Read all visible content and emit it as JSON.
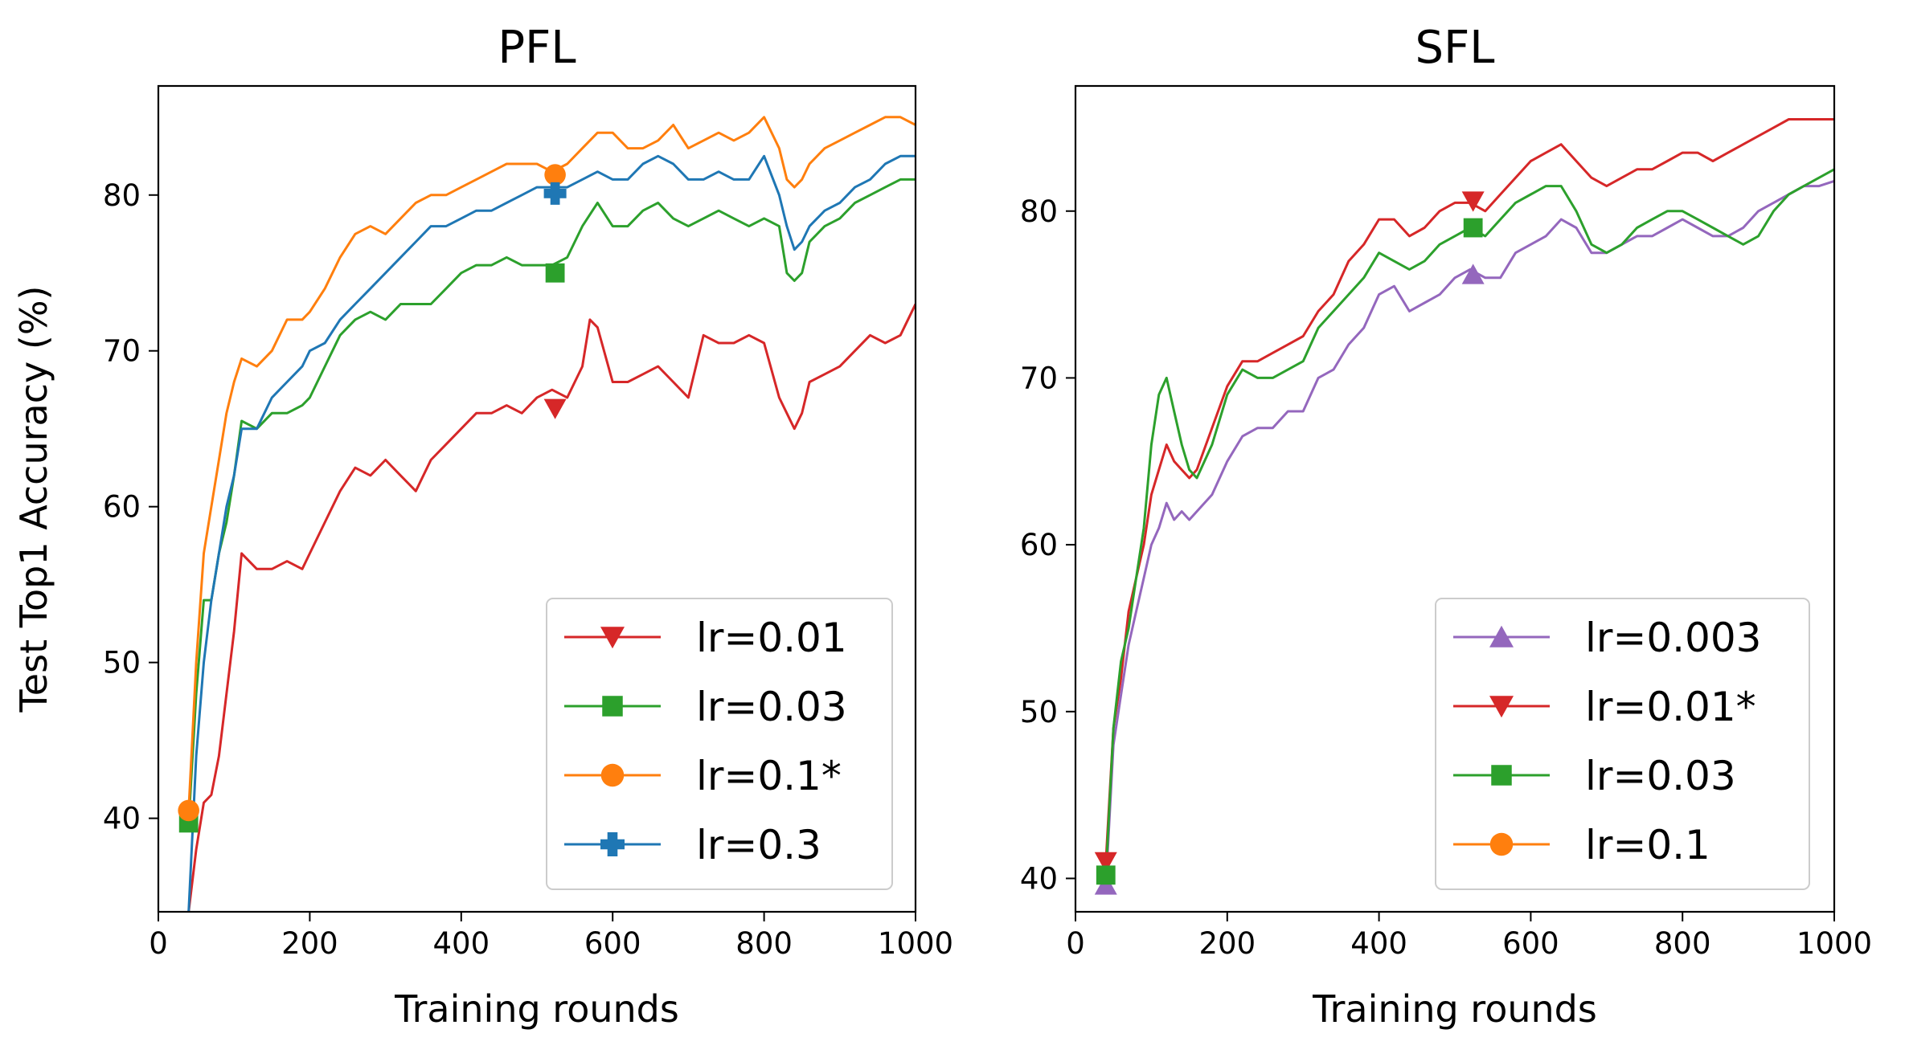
{
  "chart_data": [
    {
      "type": "line",
      "title": "PFL",
      "xlabel": "Training rounds",
      "ylabel": "Test Top1 Accuracy (%)",
      "xlim": [
        0,
        1000
      ],
      "ylim": [
        34,
        87
      ],
      "xticks": [
        0,
        200,
        400,
        600,
        800,
        1000
      ],
      "yticks": [
        40,
        50,
        60,
        70,
        80
      ],
      "legend_position": "lower-right",
      "series": [
        {
          "name": "lr=0.01",
          "color": "#d62728",
          "marker": "triangle-down",
          "marker_points": [
            [
              524,
              66.3
            ]
          ],
          "x": [
            40,
            50,
            60,
            70,
            80,
            90,
            100,
            110,
            130,
            150,
            170,
            190,
            200,
            220,
            240,
            260,
            280,
            300,
            320,
            340,
            360,
            380,
            400,
            420,
            440,
            460,
            480,
            500,
            520,
            540,
            560,
            570,
            580,
            600,
            620,
            640,
            660,
            680,
            700,
            720,
            740,
            760,
            780,
            800,
            820,
            840,
            850,
            860,
            880,
            900,
            920,
            940,
            960,
            980,
            1000
          ],
          "values": [
            34,
            38,
            41,
            41.5,
            44,
            48,
            52,
            57,
            56,
            56,
            56.5,
            56,
            57,
            59,
            61,
            62.5,
            62,
            63,
            62,
            61,
            63,
            64,
            65,
            66,
            66,
            66.5,
            66,
            67,
            67.5,
            67,
            69,
            72,
            71.5,
            68,
            68,
            68.5,
            69,
            68,
            67,
            71,
            70.5,
            70.5,
            71,
            70.5,
            67,
            65,
            66,
            68,
            68.5,
            69,
            70,
            71,
            70.5,
            71,
            73
          ]
        },
        {
          "name": "lr=0.03",
          "color": "#2ca02c",
          "marker": "square",
          "marker_points": [
            [
              40,
              39.7
            ],
            [
              524,
              75
            ]
          ],
          "x": [
            40,
            50,
            60,
            70,
            80,
            90,
            100,
            110,
            130,
            150,
            170,
            190,
            200,
            220,
            240,
            260,
            280,
            300,
            320,
            340,
            360,
            380,
            400,
            420,
            440,
            460,
            480,
            500,
            520,
            540,
            560,
            580,
            600,
            620,
            640,
            660,
            680,
            700,
            720,
            740,
            760,
            780,
            800,
            820,
            830,
            840,
            850,
            860,
            880,
            900,
            920,
            940,
            960,
            980,
            1000
          ],
          "values": [
            39.7,
            48,
            54,
            54,
            57,
            59,
            62,
            65.5,
            65,
            66,
            66,
            66.5,
            67,
            69,
            71,
            72,
            72.5,
            72,
            73,
            73,
            73,
            74,
            75,
            75.5,
            75.5,
            76,
            75.5,
            75.5,
            75.5,
            76,
            78,
            79.5,
            78,
            78,
            79,
            79.5,
            78.5,
            78,
            78.5,
            79,
            78.5,
            78,
            78.5,
            78,
            75,
            74.5,
            75,
            77,
            78,
            78.5,
            79.5,
            80,
            80.5,
            81,
            81
          ]
        },
        {
          "name": "lr=0.1*",
          "color": "#ff7f0e",
          "marker": "circle",
          "marker_points": [
            [
              40,
              40.5
            ],
            [
              524,
              81.3
            ]
          ],
          "x": [
            40,
            50,
            60,
            70,
            80,
            90,
            100,
            110,
            130,
            150,
            170,
            190,
            200,
            220,
            240,
            260,
            280,
            300,
            320,
            340,
            360,
            380,
            400,
            420,
            440,
            460,
            480,
            500,
            520,
            540,
            560,
            580,
            600,
            620,
            640,
            660,
            680,
            700,
            720,
            740,
            760,
            780,
            800,
            820,
            830,
            840,
            850,
            860,
            880,
            900,
            920,
            940,
            960,
            980,
            1000
          ],
          "values": [
            40.5,
            50,
            57,
            60,
            63,
            66,
            68,
            69.5,
            69,
            70,
            72,
            72,
            72.5,
            74,
            76,
            77.5,
            78,
            77.5,
            78.5,
            79.5,
            80,
            80,
            80.5,
            81,
            81.5,
            82,
            82,
            82,
            81.5,
            82,
            83,
            84,
            84,
            83,
            83,
            83.5,
            84.5,
            83,
            83.5,
            84,
            83.5,
            84,
            85,
            83,
            81,
            80.5,
            81,
            82,
            83,
            83.5,
            84,
            84.5,
            85,
            85,
            84.5
          ]
        },
        {
          "name": "lr=0.3",
          "color": "#1f77b4",
          "marker": "plus",
          "marker_points": [
            [
              524,
              80.1
            ]
          ],
          "x": [
            40,
            50,
            60,
            70,
            80,
            90,
            100,
            110,
            130,
            150,
            170,
            190,
            200,
            220,
            240,
            260,
            280,
            300,
            320,
            340,
            360,
            380,
            400,
            420,
            440,
            460,
            480,
            500,
            520,
            540,
            560,
            580,
            600,
            620,
            640,
            660,
            680,
            700,
            720,
            740,
            760,
            780,
            800,
            820,
            830,
            840,
            850,
            860,
            880,
            900,
            920,
            940,
            960,
            980,
            1000
          ],
          "values": [
            34,
            44,
            50,
            54,
            57,
            60,
            62,
            65,
            65,
            67,
            68,
            69,
            70,
            70.5,
            72,
            73,
            74,
            75,
            76,
            77,
            78,
            78,
            78.5,
            79,
            79,
            79.5,
            80,
            80.5,
            80.5,
            80.5,
            81,
            81.5,
            81,
            81,
            82,
            82.5,
            82,
            81,
            81,
            81.5,
            81,
            81,
            82.5,
            80,
            78,
            76.5,
            77,
            78,
            79,
            79.5,
            80.5,
            81,
            82,
            82.5,
            82.5
          ]
        }
      ]
    },
    {
      "type": "line",
      "title": "SFL",
      "xlabel": "Training rounds",
      "ylabel": "",
      "xlim": [
        0,
        1000
      ],
      "ylim": [
        38,
        87.5
      ],
      "xticks": [
        0,
        200,
        400,
        600,
        800,
        1000
      ],
      "yticks": [
        40,
        50,
        60,
        70,
        80
      ],
      "legend_position": "lower-right",
      "series": [
        {
          "name": "lr=0.003",
          "color": "#9467bd",
          "marker": "triangle-up",
          "marker_points": [
            [
              40,
              39.6
            ],
            [
              524,
              76.2
            ]
          ],
          "x": [
            40,
            50,
            60,
            70,
            80,
            90,
            100,
            110,
            120,
            130,
            140,
            150,
            160,
            180,
            200,
            220,
            240,
            260,
            280,
            300,
            320,
            340,
            360,
            380,
            400,
            420,
            440,
            460,
            480,
            500,
            520,
            540,
            560,
            580,
            600,
            620,
            640,
            660,
            680,
            700,
            720,
            740,
            760,
            780,
            800,
            820,
            840,
            860,
            880,
            900,
            920,
            940,
            960,
            980,
            1000
          ],
          "values": [
            39.6,
            48,
            51,
            54,
            56,
            58,
            60,
            61,
            62.5,
            61.5,
            62,
            61.5,
            62,
            63,
            65,
            66.5,
            67,
            67,
            68,
            68,
            70,
            70.5,
            72,
            73,
            75,
            75.5,
            74,
            74.5,
            75,
            76,
            76.5,
            76,
            76,
            77.5,
            78,
            78.5,
            79.5,
            79,
            77.5,
            77.5,
            78,
            78.5,
            78.5,
            79,
            79.5,
            79,
            78.5,
            78.5,
            79,
            80,
            80.5,
            81,
            81.5,
            81.5,
            81.8
          ]
        },
        {
          "name": "lr=0.01*",
          "color": "#d62728",
          "marker": "triangle-down",
          "marker_points": [
            [
              40,
              41
            ],
            [
              524,
              80.6
            ]
          ],
          "x": [
            40,
            50,
            60,
            70,
            80,
            90,
            100,
            110,
            120,
            130,
            140,
            150,
            160,
            180,
            200,
            220,
            240,
            260,
            280,
            300,
            320,
            340,
            360,
            380,
            400,
            420,
            440,
            460,
            480,
            500,
            520,
            540,
            560,
            580,
            600,
            620,
            640,
            660,
            680,
            700,
            720,
            740,
            760,
            780,
            800,
            820,
            840,
            860,
            880,
            900,
            920,
            940,
            960,
            980,
            1000
          ],
          "values": [
            41,
            49,
            52,
            56,
            58,
            60,
            63,
            64.5,
            66,
            65,
            64.5,
            64,
            64.5,
            67,
            69.5,
            71,
            71,
            71.5,
            72,
            72.5,
            74,
            75,
            77,
            78,
            79.5,
            79.5,
            78.5,
            79,
            80,
            80.5,
            80.5,
            80,
            81,
            82,
            83,
            83.5,
            84,
            83,
            82,
            81.5,
            82,
            82.5,
            82.5,
            83,
            83.5,
            83.5,
            83,
            83.5,
            84,
            84.5,
            85,
            85.5,
            85.5,
            85.5,
            85.5
          ]
        },
        {
          "name": "lr=0.03",
          "color": "#2ca02c",
          "marker": "square",
          "marker_points": [
            [
              40,
              40.2
            ],
            [
              524,
              79
            ]
          ],
          "x": [
            40,
            50,
            60,
            70,
            80,
            90,
            100,
            110,
            120,
            130,
            140,
            150,
            160,
            180,
            200,
            220,
            240,
            260,
            280,
            300,
            320,
            340,
            360,
            380,
            400,
            420,
            440,
            460,
            480,
            500,
            520,
            540,
            560,
            580,
            600,
            620,
            640,
            660,
            680,
            700,
            720,
            740,
            760,
            780,
            800,
            820,
            840,
            860,
            880,
            900,
            920,
            940,
            960,
            980,
            1000
          ],
          "values": [
            40.2,
            49,
            53,
            55,
            58,
            61,
            66,
            69,
            70,
            68,
            66,
            64.5,
            64,
            66,
            69,
            70.5,
            70,
            70,
            70.5,
            71,
            73,
            74,
            75,
            76,
            77.5,
            77,
            76.5,
            77,
            78,
            78.5,
            79,
            78.5,
            79.5,
            80.5,
            81,
            81.5,
            81.5,
            80,
            78,
            77.5,
            78,
            79,
            79.5,
            80,
            80,
            79.5,
            79,
            78.5,
            78,
            78.5,
            80,
            81,
            81.5,
            82,
            82.5
          ]
        },
        {
          "name": "lr=0.1",
          "color": "#ff7f0e",
          "marker": "circle",
          "marker_points": [],
          "x": [],
          "values": []
        }
      ]
    }
  ]
}
